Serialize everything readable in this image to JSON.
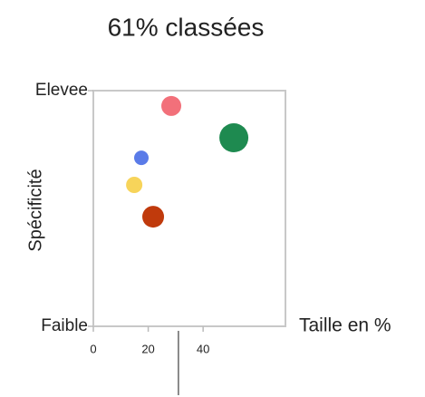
{
  "chart_data": {
    "type": "bubble",
    "title": "61% classées",
    "xlabel": "Taille en %",
    "ylabel": "Spécificité",
    "xlim": [
      0,
      70
    ],
    "xticks": [
      0,
      20,
      40
    ],
    "ylim": [
      0,
      10
    ],
    "yticks": [
      {
        "value": 0,
        "label": "Faible"
      },
      {
        "value": 10,
        "label": "Elevee"
      }
    ],
    "x": [
      28.4,
      51.2,
      17.5,
      14.9,
      21.8
    ],
    "values": [
      9.35,
      8.0,
      7.15,
      6.0,
      4.65
    ],
    "sizes": [
      11,
      16,
      8,
      9,
      12
    ],
    "colors": [
      "#f2707a",
      "#1e8a50",
      "#5a7be8",
      "#f7d45a",
      "#c03a0c"
    ],
    "marker_x": 31
  }
}
